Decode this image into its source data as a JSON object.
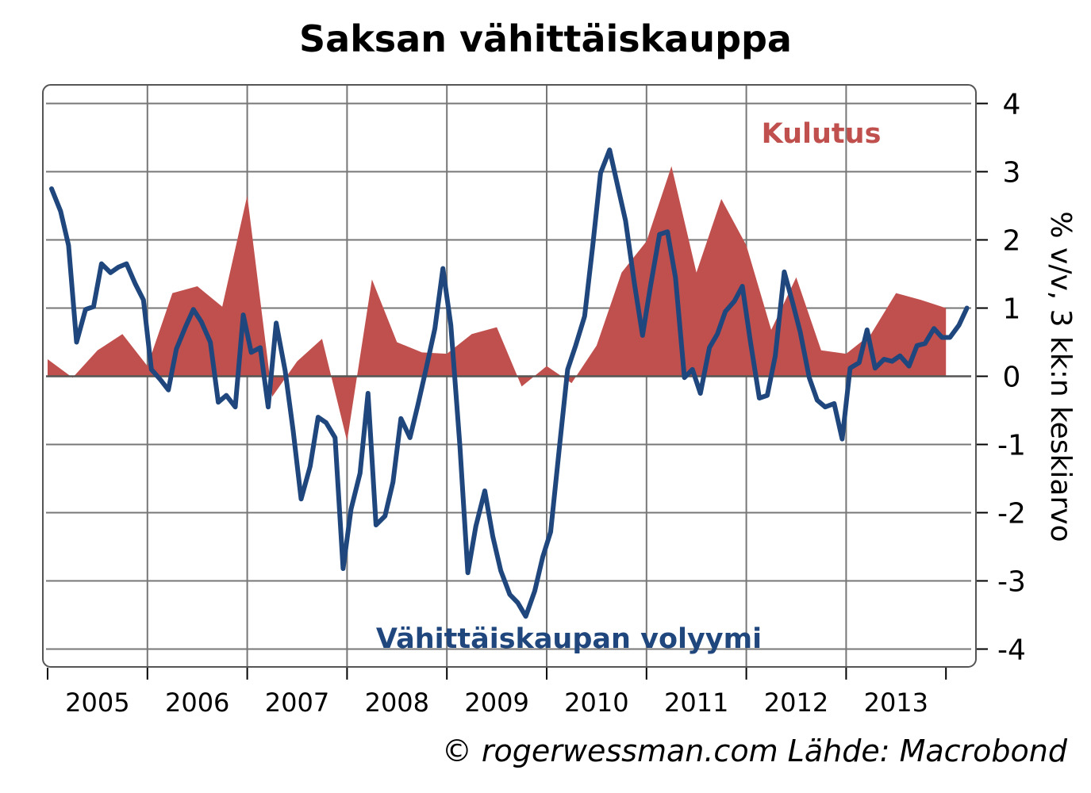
{
  "chart_data": {
    "type": "area",
    "title": "Saksan vähittäiskauppa",
    "ylabel": "% v/v, 3 kk:n keskiarvo",
    "ylim": [
      -4,
      4
    ],
    "yticks": [
      "4",
      "3",
      "2",
      "1",
      "0",
      "-1",
      "-2",
      "-3",
      "-4"
    ],
    "x_tick_labels": [
      "2005",
      "2006",
      "2007",
      "2008",
      "2009",
      "2010",
      "2011",
      "2012",
      "2013"
    ],
    "grid": true,
    "x_unit": "year",
    "xlim": [
      2005.0,
      2014.3
    ],
    "series": [
      {
        "name": "Kulutus",
        "chart_type": "area",
        "color": "#c0504d",
        "points": [
          [
            2005.0,
            0.25
          ],
          [
            2005.25,
            -0.02
          ],
          [
            2005.5,
            0.38
          ],
          [
            2005.75,
            0.62
          ],
          [
            2006.0,
            0.15
          ],
          [
            2006.25,
            1.22
          ],
          [
            2006.5,
            1.32
          ],
          [
            2006.75,
            1.02
          ],
          [
            2007.0,
            2.65
          ],
          [
            2007.25,
            -0.3
          ],
          [
            2007.5,
            0.22
          ],
          [
            2007.75,
            0.55
          ],
          [
            2008.0,
            -0.95
          ],
          [
            2008.25,
            1.42
          ],
          [
            2008.5,
            0.5
          ],
          [
            2008.75,
            0.35
          ],
          [
            2009.0,
            0.33
          ],
          [
            2009.25,
            0.62
          ],
          [
            2009.5,
            0.72
          ],
          [
            2009.75,
            -0.15
          ],
          [
            2010.0,
            0.15
          ],
          [
            2010.25,
            -0.1
          ],
          [
            2010.5,
            0.45
          ],
          [
            2010.75,
            1.52
          ],
          [
            2011.0,
            1.98
          ],
          [
            2011.25,
            3.08
          ],
          [
            2011.5,
            1.52
          ],
          [
            2011.75,
            2.6
          ],
          [
            2012.0,
            1.92
          ],
          [
            2012.25,
            0.68
          ],
          [
            2012.5,
            1.45
          ],
          [
            2012.75,
            0.38
          ],
          [
            2013.0,
            0.33
          ],
          [
            2013.25,
            0.62
          ],
          [
            2013.5,
            1.22
          ],
          [
            2013.75,
            1.12
          ],
          [
            2014.0,
            1.0
          ]
        ]
      },
      {
        "name": "Vähittäiskaupan volyymi",
        "chart_type": "line",
        "color": "#1f477d",
        "points": [
          [
            2005.04,
            2.75
          ],
          [
            2005.13,
            2.42
          ],
          [
            2005.21,
            1.92
          ],
          [
            2005.29,
            0.5
          ],
          [
            2005.38,
            0.98
          ],
          [
            2005.46,
            1.02
          ],
          [
            2005.54,
            1.65
          ],
          [
            2005.63,
            1.52
          ],
          [
            2005.71,
            1.6
          ],
          [
            2005.79,
            1.65
          ],
          [
            2005.88,
            1.35
          ],
          [
            2005.96,
            1.12
          ],
          [
            2006.04,
            0.1
          ],
          [
            2006.13,
            -0.05
          ],
          [
            2006.21,
            -0.2
          ],
          [
            2006.29,
            0.4
          ],
          [
            2006.38,
            0.72
          ],
          [
            2006.46,
            0.98
          ],
          [
            2006.54,
            0.8
          ],
          [
            2006.63,
            0.5
          ],
          [
            2006.71,
            -0.38
          ],
          [
            2006.79,
            -0.28
          ],
          [
            2006.88,
            -0.45
          ],
          [
            2006.96,
            0.9
          ],
          [
            2007.04,
            0.35
          ],
          [
            2007.13,
            0.42
          ],
          [
            2007.21,
            -0.45
          ],
          [
            2007.29,
            0.78
          ],
          [
            2007.38,
            0.08
          ],
          [
            2007.46,
            -0.8
          ],
          [
            2007.54,
            -1.8
          ],
          [
            2007.63,
            -1.32
          ],
          [
            2007.71,
            -0.6
          ],
          [
            2007.79,
            -0.68
          ],
          [
            2007.88,
            -0.9
          ],
          [
            2007.96,
            -2.82
          ],
          [
            2008.04,
            -1.95
          ],
          [
            2008.13,
            -1.42
          ],
          [
            2008.21,
            -0.25
          ],
          [
            2008.29,
            -2.18
          ],
          [
            2008.38,
            -2.05
          ],
          [
            2008.46,
            -1.55
          ],
          [
            2008.54,
            -0.62
          ],
          [
            2008.63,
            -0.9
          ],
          [
            2008.71,
            -0.42
          ],
          [
            2008.79,
            0.1
          ],
          [
            2008.88,
            0.7
          ],
          [
            2008.96,
            1.58
          ],
          [
            2009.04,
            0.75
          ],
          [
            2009.13,
            -1.02
          ],
          [
            2009.21,
            -2.88
          ],
          [
            2009.29,
            -2.2
          ],
          [
            2009.38,
            -1.68
          ],
          [
            2009.46,
            -2.35
          ],
          [
            2009.54,
            -2.85
          ],
          [
            2009.63,
            -3.2
          ],
          [
            2009.71,
            -3.32
          ],
          [
            2009.79,
            -3.52
          ],
          [
            2009.88,
            -3.15
          ],
          [
            2009.96,
            -2.65
          ],
          [
            2010.04,
            -2.28
          ],
          [
            2010.13,
            -1.0
          ],
          [
            2010.21,
            0.1
          ],
          [
            2010.29,
            0.45
          ],
          [
            2010.38,
            0.88
          ],
          [
            2010.46,
            1.9
          ],
          [
            2010.54,
            2.98
          ],
          [
            2010.63,
            3.32
          ],
          [
            2010.71,
            2.8
          ],
          [
            2010.79,
            2.28
          ],
          [
            2010.88,
            1.35
          ],
          [
            2010.96,
            0.6
          ],
          [
            2011.04,
            1.32
          ],
          [
            2011.13,
            2.08
          ],
          [
            2011.21,
            2.12
          ],
          [
            2011.29,
            1.45
          ],
          [
            2011.38,
            -0.02
          ],
          [
            2011.46,
            0.1
          ],
          [
            2011.54,
            -0.25
          ],
          [
            2011.63,
            0.42
          ],
          [
            2011.71,
            0.62
          ],
          [
            2011.79,
            0.95
          ],
          [
            2011.88,
            1.1
          ],
          [
            2011.96,
            1.32
          ],
          [
            2012.04,
            0.52
          ],
          [
            2012.13,
            -0.32
          ],
          [
            2012.21,
            -0.28
          ],
          [
            2012.29,
            0.3
          ],
          [
            2012.38,
            1.53
          ],
          [
            2012.46,
            1.1
          ],
          [
            2012.54,
            0.65
          ],
          [
            2012.63,
            -0.02
          ],
          [
            2012.71,
            -0.35
          ],
          [
            2012.79,
            -0.45
          ],
          [
            2012.88,
            -0.4
          ],
          [
            2012.96,
            -0.92
          ],
          [
            2013.04,
            0.12
          ],
          [
            2013.13,
            0.2
          ],
          [
            2013.21,
            0.68
          ],
          [
            2013.29,
            0.12
          ],
          [
            2013.38,
            0.25
          ],
          [
            2013.46,
            0.22
          ],
          [
            2013.54,
            0.3
          ],
          [
            2013.63,
            0.15
          ],
          [
            2013.71,
            0.45
          ],
          [
            2013.79,
            0.48
          ],
          [
            2013.88,
            0.7
          ],
          [
            2013.96,
            0.57
          ],
          [
            2014.04,
            0.57
          ],
          [
            2014.13,
            0.75
          ],
          [
            2014.21,
            1.0
          ]
        ]
      }
    ]
  },
  "labels": {
    "kulutus": "Kulutus",
    "volyymi": "Vähittäiskaupan volyymi",
    "copyright": "© rogerwessman.com Lähde: Macrobond"
  }
}
